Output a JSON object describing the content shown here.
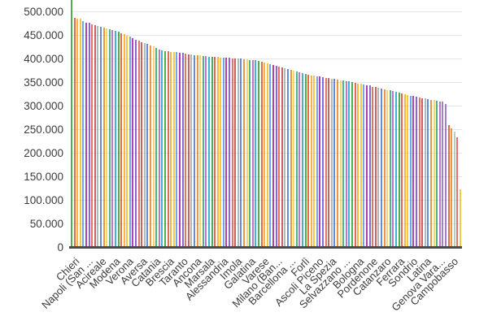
{
  "chart_data": {
    "type": "bar",
    "title": "",
    "xlabel": "",
    "ylabel": "",
    "ylim": [
      0,
      500000
    ],
    "grid": true,
    "legend": "none",
    "y_tick_labels": [
      "500.000",
      "450.000",
      "400.000",
      "350.000",
      "300.000",
      "250.000",
      "200.000",
      "150.000",
      "100.000",
      "50.000",
      "0"
    ],
    "y_tick_values": [
      500000,
      450000,
      400000,
      350000,
      300000,
      250000,
      200000,
      150000,
      100000,
      50000,
      0
    ],
    "x_tick_labels": [
      "Chieri",
      "Napoli (San ...",
      "Acireale",
      "Modena",
      "Verona",
      "Aversa",
      "Catania",
      "Brescia",
      "Taranto",
      "Ancona",
      "Marsala",
      "Alessandria",
      "Imola",
      "Galatina",
      "Varese",
      "Milano (Ban...",
      "Barcellona ...",
      "Forlì",
      "Ascoli Piceno",
      "La Spezia",
      "Selvazzano ...",
      "Bologna",
      "Pordenone",
      "Catanzaro",
      "Ferrara",
      "Sondrio",
      "Latina",
      "Genova Vara...",
      "Campobasso"
    ],
    "notes": "First bar (leftmost, green) extends past the top of the visible plot area (value off-scale, > 500.000). Only every ~5th bar carries an axis label.",
    "values": [
      null,
      488000,
      487000,
      486000,
      481000,
      478000,
      477000,
      475000,
      473000,
      471000,
      469000,
      467000,
      466000,
      464000,
      462000,
      460000,
      459000,
      456000,
      453000,
      450000,
      448000,
      445000,
      442000,
      440000,
      437000,
      434000,
      432000,
      429000,
      427000,
      424000,
      421000,
      419000,
      418000,
      417000,
      416000,
      416000,
      415000,
      414000,
      413000,
      412000,
      411000,
      410000,
      409000,
      408000,
      408000,
      407000,
      407000,
      406000,
      406000,
      405000,
      405000,
      404000,
      404000,
      403000,
      403000,
      402000,
      402000,
      401000,
      401000,
      400000,
      400000,
      399000,
      399000,
      398000,
      397000,
      395000,
      393000,
      392000,
      390000,
      388000,
      386000,
      385000,
      383000,
      381000,
      379000,
      378000,
      376000,
      374000,
      372000,
      371000,
      369000,
      367000,
      366000,
      365000,
      364000,
      363000,
      362000,
      361000,
      360000,
      359000,
      358000,
      357000,
      356000,
      355000,
      354000,
      353000,
      351000,
      350000,
      349000,
      348000,
      347000,
      345000,
      344000,
      342000,
      341000,
      340000,
      338000,
      337000,
      335000,
      334000,
      332000,
      331000,
      329000,
      328000,
      326000,
      325000,
      323000,
      322000,
      320000,
      319000,
      318000,
      317000,
      316000,
      314000,
      313000,
      312000,
      311000,
      310000,
      305000,
      260000,
      253000,
      247000,
      234000,
      124000
    ],
    "palette": [
      "#109618",
      "#DC3912",
      "#FF9900",
      "#F4B400",
      "#4285F4",
      "#990099",
      "#6633CC",
      "#DB4437",
      "#B82E2E",
      "#9AA0A6",
      "#3366CC",
      "#E67300",
      "#F1CA3A",
      "#0F9D58",
      "#AB47BC",
      "#0099C6"
    ],
    "color_overrides": {
      "127": "#7E57C2",
      "128": "#7E57C2",
      "129": "#DC3912",
      "130": "#E67300",
      "131": "#9FBF9F",
      "132": "#DB4437",
      "133": "#F4B400"
    },
    "colors": {
      "background": "#ffffff",
      "gridline": "#e6e6e6",
      "baseline": "#4a4a4a",
      "axis_text": "#3c3c3c"
    }
  }
}
